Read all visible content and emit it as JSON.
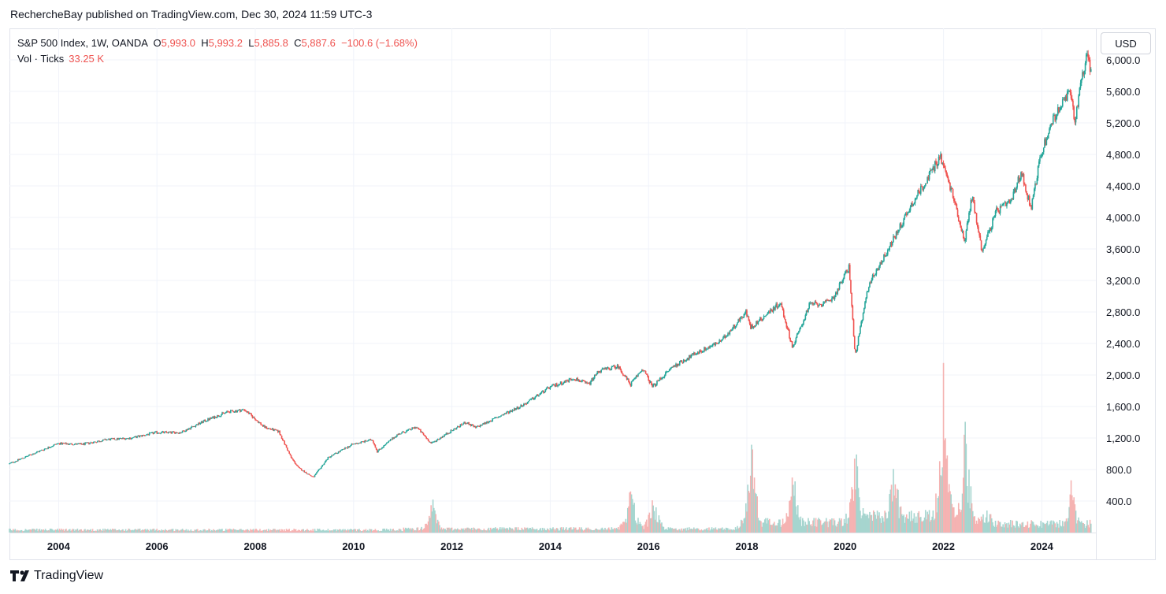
{
  "header": {
    "published_line": "RechercheBay published on TradingView.com, Dec 30, 2024 11:59 UTC-3"
  },
  "legend": {
    "symbol": "S&P 500 Index, 1W, OANDA",
    "open_label": "O",
    "open_value": "5,993.0",
    "high_label": "H",
    "high_value": "5,993.2",
    "low_label": "L",
    "low_value": "5,885.8",
    "close_label": "C",
    "close_value": "5,887.6",
    "change": "−100.6 (−1.68%)",
    "volume_label": "Vol · Ticks",
    "volume_value": "33.25 K"
  },
  "toolbar": {
    "currency": "USD"
  },
  "brand": {
    "name": "TradingView"
  },
  "colors": {
    "up": "#26a69a",
    "down": "#ef5350",
    "up_volume": "#a6d5cf",
    "down_volume": "#f5b3b2",
    "grid": "#f0f3fa"
  },
  "chart_data": {
    "type": "candlestick",
    "interval": "1W",
    "y_axis": {
      "min": 0,
      "max": 6400,
      "ticks": [
        400,
        800,
        1200,
        1600,
        2000,
        2400,
        2800,
        3200,
        3600,
        4000,
        4400,
        4800,
        5200,
        5600,
        6000
      ],
      "tick_labels": [
        "400.0",
        "800.0",
        "1,200.0",
        "1,600.0",
        "2,000.0",
        "2,400.0",
        "2,800.0",
        "3,200.0",
        "3,600.0",
        "4,000.0",
        "4,400.0",
        "4,800.0",
        "5,200.0",
        "5,600.0",
        "6,000.0"
      ],
      "position": "right"
    },
    "x_axis": {
      "start": 2003.0,
      "end": 2025.1,
      "ticks": [
        2004,
        2006,
        2008,
        2010,
        2012,
        2014,
        2016,
        2018,
        2020,
        2022,
        2024
      ],
      "tick_labels": [
        "2004",
        "2006",
        "2008",
        "2010",
        "2012",
        "2014",
        "2016",
        "2018",
        "2020",
        "2022",
        "2024"
      ]
    },
    "price_path": [
      [
        2003.0,
        870
      ],
      [
        2003.5,
        1000
      ],
      [
        2004.0,
        1130
      ],
      [
        2004.5,
        1120
      ],
      [
        2005.0,
        1180
      ],
      [
        2005.5,
        1200
      ],
      [
        2006.0,
        1270
      ],
      [
        2006.5,
        1270
      ],
      [
        2007.0,
        1420
      ],
      [
        2007.45,
        1530
      ],
      [
        2007.8,
        1560
      ],
      [
        2008.2,
        1340
      ],
      [
        2008.5,
        1280
      ],
      [
        2008.75,
        950
      ],
      [
        2008.9,
        820
      ],
      [
        2009.2,
        700
      ],
      [
        2009.5,
        950
      ],
      [
        2010.0,
        1120
      ],
      [
        2010.4,
        1180
      ],
      [
        2010.5,
        1030
      ],
      [
        2010.9,
        1240
      ],
      [
        2011.3,
        1340
      ],
      [
        2011.6,
        1130
      ],
      [
        2011.9,
        1250
      ],
      [
        2012.3,
        1400
      ],
      [
        2012.5,
        1330
      ],
      [
        2013.0,
        1480
      ],
      [
        2013.5,
        1630
      ],
      [
        2014.0,
        1840
      ],
      [
        2014.5,
        1960
      ],
      [
        2014.8,
        1880
      ],
      [
        2015.0,
        2050
      ],
      [
        2015.4,
        2110
      ],
      [
        2015.65,
        1880
      ],
      [
        2015.9,
        2080
      ],
      [
        2016.1,
        1850
      ],
      [
        2016.5,
        2100
      ],
      [
        2017.0,
        2280
      ],
      [
        2017.5,
        2430
      ],
      [
        2018.0,
        2800
      ],
      [
        2018.1,
        2600
      ],
      [
        2018.7,
        2920
      ],
      [
        2018.95,
        2350
      ],
      [
        2019.3,
        2900
      ],
      [
        2019.6,
        2900
      ],
      [
        2019.8,
        3000
      ],
      [
        2020.1,
        3380
      ],
      [
        2020.22,
        2240
      ],
      [
        2020.5,
        3150
      ],
      [
        2020.9,
        3600
      ],
      [
        2021.4,
        4200
      ],
      [
        2021.7,
        4500
      ],
      [
        2021.95,
        4780
      ],
      [
        2022.2,
        4300
      ],
      [
        2022.45,
        3700
      ],
      [
        2022.6,
        4280
      ],
      [
        2022.8,
        3580
      ],
      [
        2023.1,
        4080
      ],
      [
        2023.4,
        4200
      ],
      [
        2023.6,
        4580
      ],
      [
        2023.8,
        4120
      ],
      [
        2024.0,
        4800
      ],
      [
        2024.25,
        5250
      ],
      [
        2024.6,
        5600
      ],
      [
        2024.7,
        5200
      ],
      [
        2024.8,
        5700
      ],
      [
        2024.95,
        6090
      ],
      [
        2025.0,
        5888
      ]
    ],
    "volume_peaks": [
      [
        2011.6,
        400
      ],
      [
        2015.65,
        620
      ],
      [
        2016.1,
        480
      ],
      [
        2018.1,
        1040
      ],
      [
        2018.95,
        750
      ],
      [
        2020.22,
        1000
      ],
      [
        2021.0,
        960
      ],
      [
        2022.0,
        1780
      ],
      [
        2022.45,
        1290
      ],
      [
        2024.6,
        620
      ]
    ]
  }
}
